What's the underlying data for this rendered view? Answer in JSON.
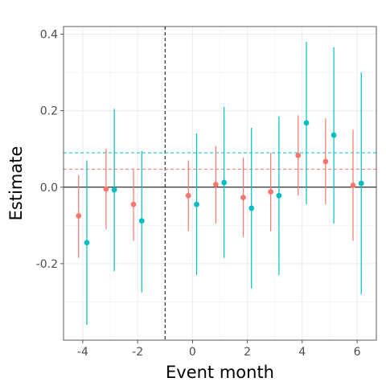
{
  "chart_data": {
    "type": "scatter",
    "xlabel": "Event month",
    "ylabel": "Estimate",
    "xlim": [
      -4.7,
      6.7
    ],
    "ylim": [
      -0.4,
      0.42
    ],
    "x_ticks": [
      -4,
      -2,
      0,
      2,
      4,
      6
    ],
    "x_tick_labels": [
      "-4",
      "-2",
      "0",
      "2",
      "4",
      "6"
    ],
    "y_ticks": [
      -0.2,
      0.0,
      0.2,
      0.4
    ],
    "y_tick_labels": [
      "-0.2",
      "0.0",
      "0.2",
      "0.4"
    ],
    "grid": true,
    "reference_lines": {
      "zero_horizontal": 0,
      "event_vertical_x": -1
    },
    "series": [
      {
        "color": "#F8766D",
        "mean_dashed_line": 0.047,
        "points": [
          {
            "x": -4.15,
            "y": -0.075,
            "lo": -0.185,
            "hi": 0.032
          },
          {
            "x": -3.15,
            "y": -0.005,
            "lo": -0.11,
            "hi": 0.1
          },
          {
            "x": -2.15,
            "y": -0.045,
            "lo": -0.14,
            "hi": 0.045
          },
          {
            "x": -0.15,
            "y": -0.022,
            "lo": -0.115,
            "hi": 0.07
          },
          {
            "x": 0.85,
            "y": 0.007,
            "lo": -0.095,
            "hi": 0.107
          },
          {
            "x": 1.85,
            "y": -0.027,
            "lo": -0.13,
            "hi": 0.077
          },
          {
            "x": 2.85,
            "y": -0.012,
            "lo": -0.115,
            "hi": 0.09
          },
          {
            "x": 3.85,
            "y": 0.083,
            "lo": -0.022,
            "hi": 0.188
          },
          {
            "x": 4.85,
            "y": 0.067,
            "lo": -0.045,
            "hi": 0.18
          },
          {
            "x": 5.85,
            "y": 0.005,
            "lo": -0.14,
            "hi": 0.15
          }
        ]
      },
      {
        "color": "#00BFC4",
        "mean_dashed_line": 0.09,
        "points": [
          {
            "x": -3.85,
            "y": -0.145,
            "lo": -0.36,
            "hi": 0.07
          },
          {
            "x": -2.85,
            "y": -0.007,
            "lo": -0.22,
            "hi": 0.205
          },
          {
            "x": -1.85,
            "y": -0.088,
            "lo": -0.275,
            "hi": 0.095
          },
          {
            "x": 0.15,
            "y": -0.045,
            "lo": -0.23,
            "hi": 0.14
          },
          {
            "x": 1.15,
            "y": 0.012,
            "lo": -0.185,
            "hi": 0.21
          },
          {
            "x": 2.15,
            "y": -0.055,
            "lo": -0.265,
            "hi": 0.155
          },
          {
            "x": 3.15,
            "y": -0.022,
            "lo": -0.23,
            "hi": 0.185
          },
          {
            "x": 4.15,
            "y": 0.168,
            "lo": -0.045,
            "hi": 0.38
          },
          {
            "x": 5.15,
            "y": 0.136,
            "lo": -0.095,
            "hi": 0.366
          },
          {
            "x": 6.15,
            "y": 0.01,
            "lo": -0.28,
            "hi": 0.3
          }
        ]
      }
    ]
  }
}
